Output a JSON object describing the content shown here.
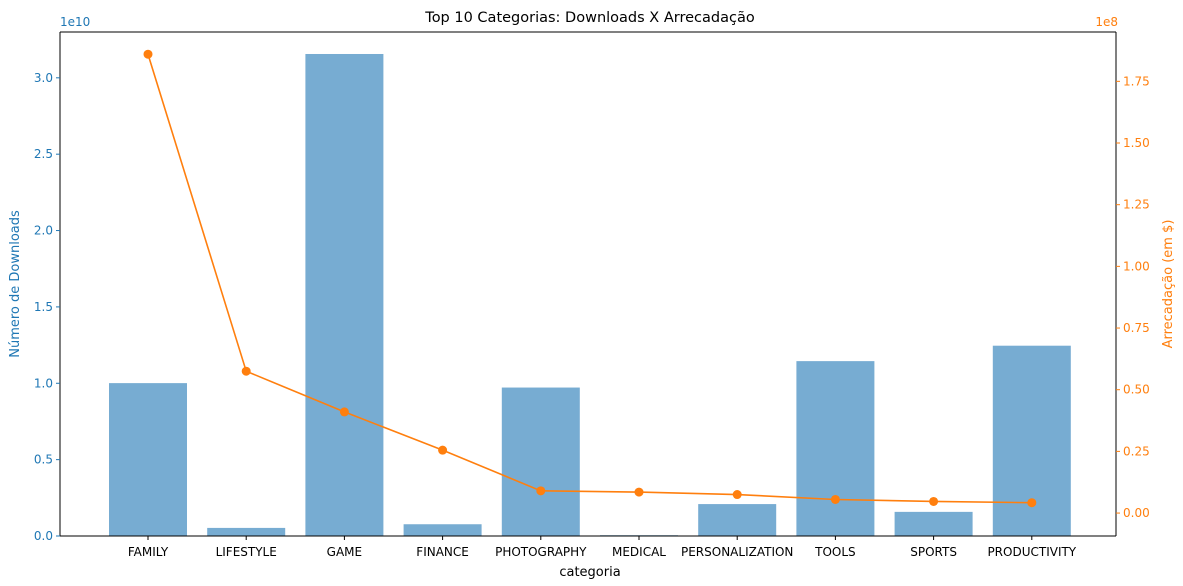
{
  "colors": {
    "downloads": "#1f77b4",
    "downloads_bar": "#77acd2",
    "revenue": "#ff7f0e",
    "axis": "#000000",
    "background": "#ffffff"
  },
  "chart_data": {
    "type": "bar+line",
    "title": "Top 10 Categorias: Downloads X Arrecadação",
    "xlabel": "categoria",
    "ylabel_left": "Número de Downloads",
    "ylabel_right": "Arrecadação (em $)",
    "left_axis_multiplier": "1e10",
    "right_axis_multiplier": "1e8",
    "categories": [
      "FAMILY",
      "LIFESTYLE",
      "GAME",
      "FINANCE",
      "PHOTOGRAPHY",
      "MEDICAL",
      "PERSONALIZATION",
      "TOOLS",
      "SPORTS",
      "PRODUCTIVITY"
    ],
    "left_ticks": [
      "0.0",
      "0.5",
      "1.0",
      "1.5",
      "2.0",
      "2.5",
      "3.0"
    ],
    "right_ticks": [
      "0.00",
      "0.25",
      "0.50",
      "0.75",
      "1.00",
      "1.25",
      "1.50",
      "1.75"
    ],
    "ylim_left": [
      0,
      33000000000
    ],
    "ylim_right": [
      -9300000,
      195000000
    ],
    "series": [
      {
        "name": "Downloads",
        "kind": "bar",
        "axis": "left",
        "values": [
          10010000000,
          530000000,
          31560000000,
          770000000,
          9720000000,
          50000000,
          2090000000,
          11450000000,
          1580000000,
          12460000000
        ]
      },
      {
        "name": "Arrecadação",
        "kind": "line",
        "axis": "right",
        "values": [
          186000000,
          57500000,
          41000000,
          25500000,
          9000000,
          8500000,
          7500000,
          5500000,
          4700000,
          4200000
        ]
      }
    ],
    "grid": false,
    "legend": "none"
  }
}
